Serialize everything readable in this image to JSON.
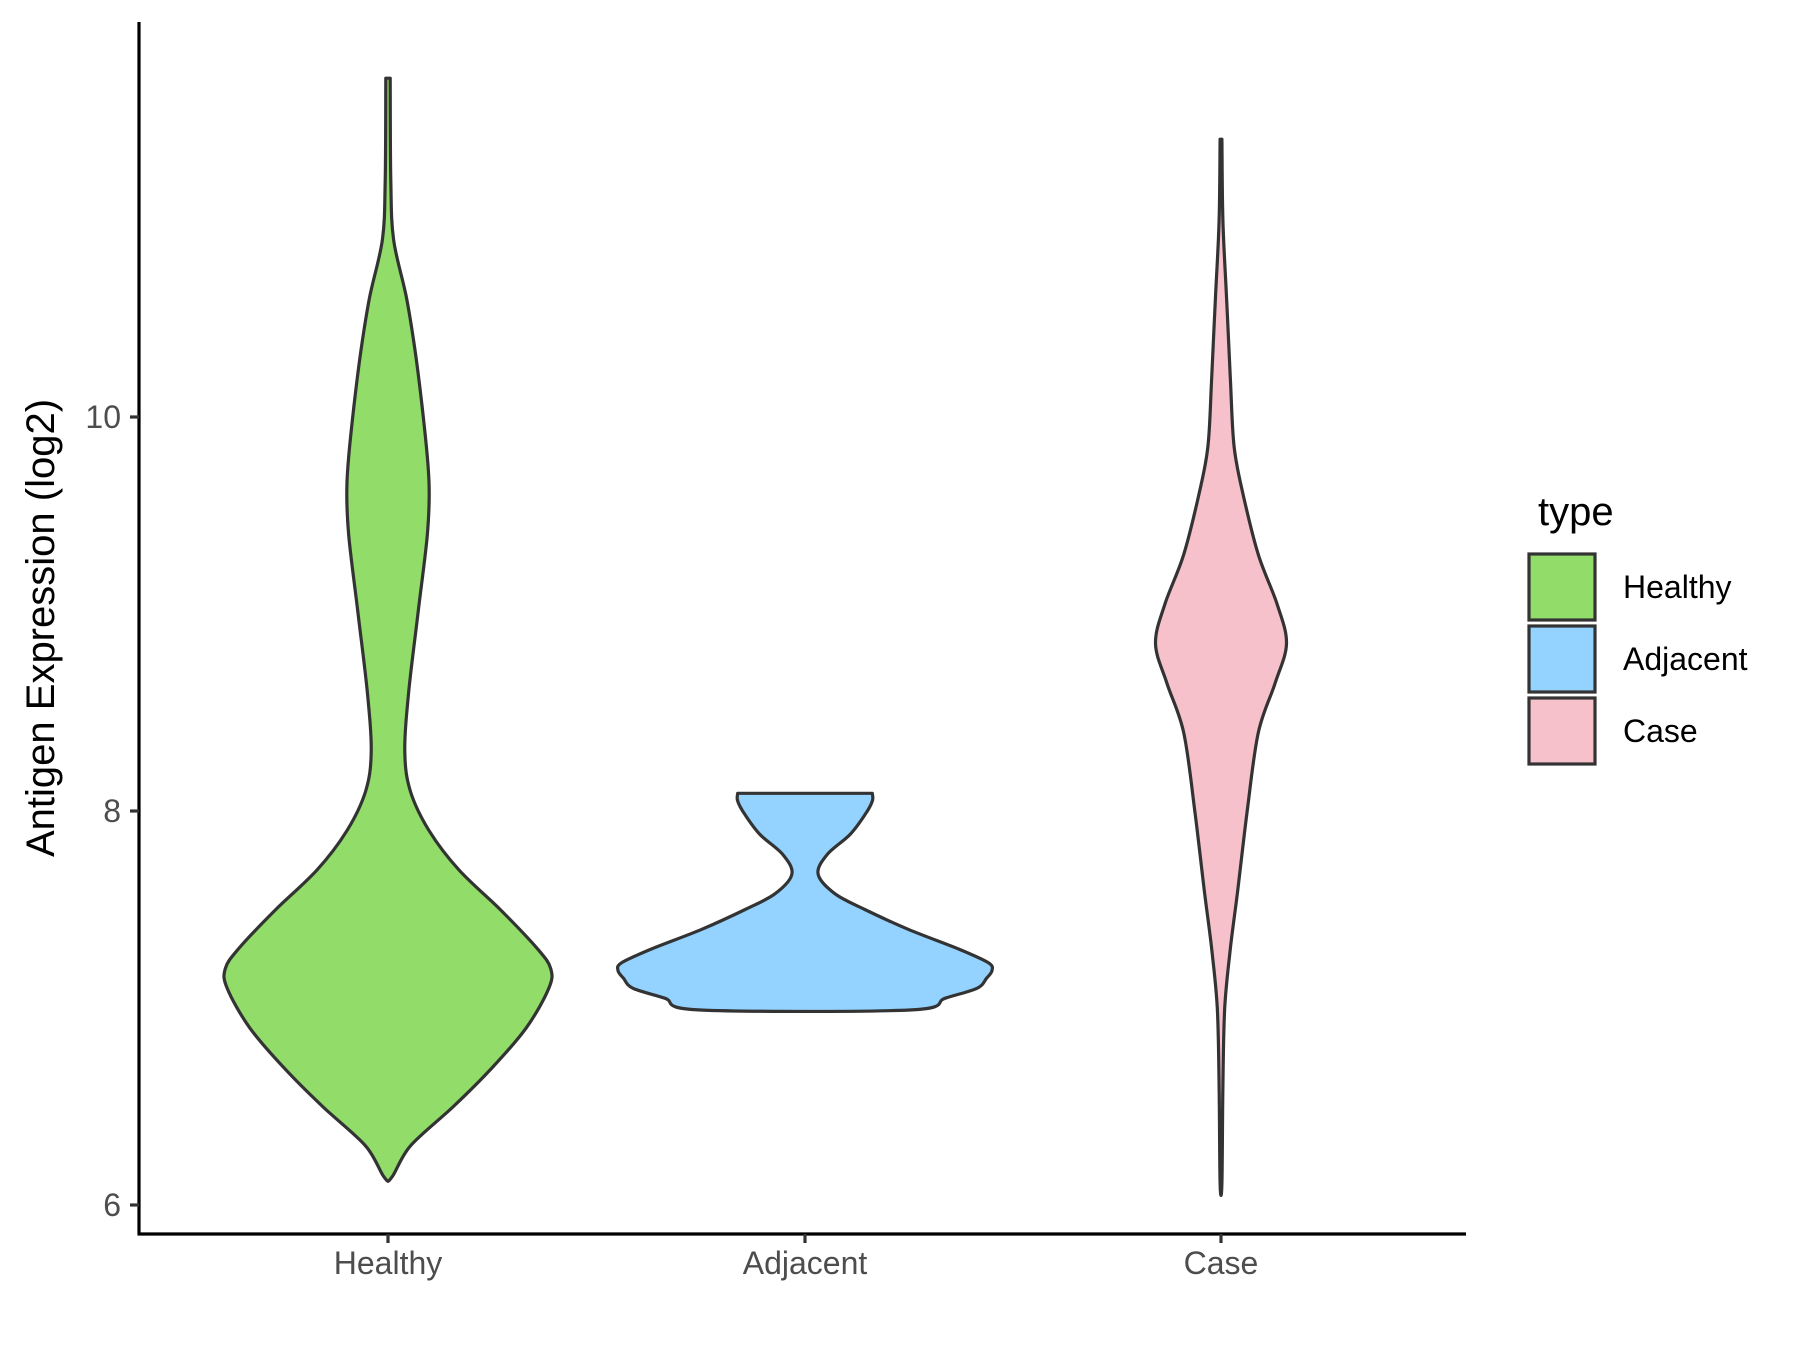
{
  "chart_data": {
    "type": "violin",
    "title": "",
    "xlabel": "",
    "ylabel": "Antigen Expression (log2)",
    "ylim": [
      5.83,
      12.0
    ],
    "yticks": [
      6,
      8,
      10
    ],
    "categories": [
      "Healthy",
      "Adjacent",
      "Case"
    ],
    "legend": {
      "title": "type",
      "position": "right",
      "entries": [
        {
          "label": "Healthy",
          "color": "#92DC6A"
        },
        {
          "label": "Adjacent",
          "color": "#94D2FF"
        },
        {
          "label": "Case",
          "color": "#F7C1CC"
        }
      ]
    },
    "grid": false,
    "outline_color": "#333333",
    "series": [
      {
        "category": "Healthy",
        "color": "#92DC6A",
        "min": 6.14,
        "max": 11.72,
        "density": [
          [
            6.14,
            0.02
          ],
          [
            6.3,
            0.12
          ],
          [
            6.5,
            0.35
          ],
          [
            6.7,
            0.56
          ],
          [
            6.9,
            0.74
          ],
          [
            7.1,
            0.86
          ],
          [
            7.2,
            0.87
          ],
          [
            7.3,
            0.8
          ],
          [
            7.5,
            0.6
          ],
          [
            7.7,
            0.38
          ],
          [
            7.9,
            0.22
          ],
          [
            8.1,
            0.12
          ],
          [
            8.3,
            0.09
          ],
          [
            8.6,
            0.11
          ],
          [
            9.0,
            0.16
          ],
          [
            9.4,
            0.21
          ],
          [
            9.65,
            0.22
          ],
          [
            9.9,
            0.2
          ],
          [
            10.3,
            0.15
          ],
          [
            10.6,
            0.1
          ],
          [
            10.9,
            0.03
          ],
          [
            11.2,
            0.015
          ],
          [
            11.72,
            0.012
          ]
        ]
      },
      {
        "category": "Adjacent",
        "color": "#94D2FF",
        "min": 6.99,
        "max": 8.09,
        "density": [
          [
            6.99,
            0.56
          ],
          [
            7.05,
            0.75
          ],
          [
            7.1,
            0.92
          ],
          [
            7.15,
            0.97
          ],
          [
            7.19,
            1.0
          ],
          [
            7.23,
            0.98
          ],
          [
            7.3,
            0.82
          ],
          [
            7.4,
            0.55
          ],
          [
            7.5,
            0.32
          ],
          [
            7.58,
            0.16
          ],
          [
            7.68,
            0.07
          ],
          [
            7.78,
            0.12
          ],
          [
            7.88,
            0.24
          ],
          [
            7.98,
            0.32
          ],
          [
            8.05,
            0.36
          ],
          [
            8.09,
            0.36
          ]
        ]
      },
      {
        "category": "Case",
        "color": "#F7C1CC",
        "min": 6.11,
        "max": 11.41,
        "density": [
          [
            6.11,
            0.005
          ],
          [
            6.6,
            0.01
          ],
          [
            7.0,
            0.02
          ],
          [
            7.3,
            0.05
          ],
          [
            7.6,
            0.09
          ],
          [
            8.0,
            0.14
          ],
          [
            8.4,
            0.2
          ],
          [
            8.65,
            0.29
          ],
          [
            8.85,
            0.35
          ],
          [
            9.05,
            0.3
          ],
          [
            9.3,
            0.2
          ],
          [
            9.6,
            0.12
          ],
          [
            9.85,
            0.07
          ],
          [
            10.2,
            0.05
          ],
          [
            10.6,
            0.03
          ],
          [
            11.0,
            0.01
          ],
          [
            11.41,
            0.005
          ]
        ]
      }
    ]
  }
}
